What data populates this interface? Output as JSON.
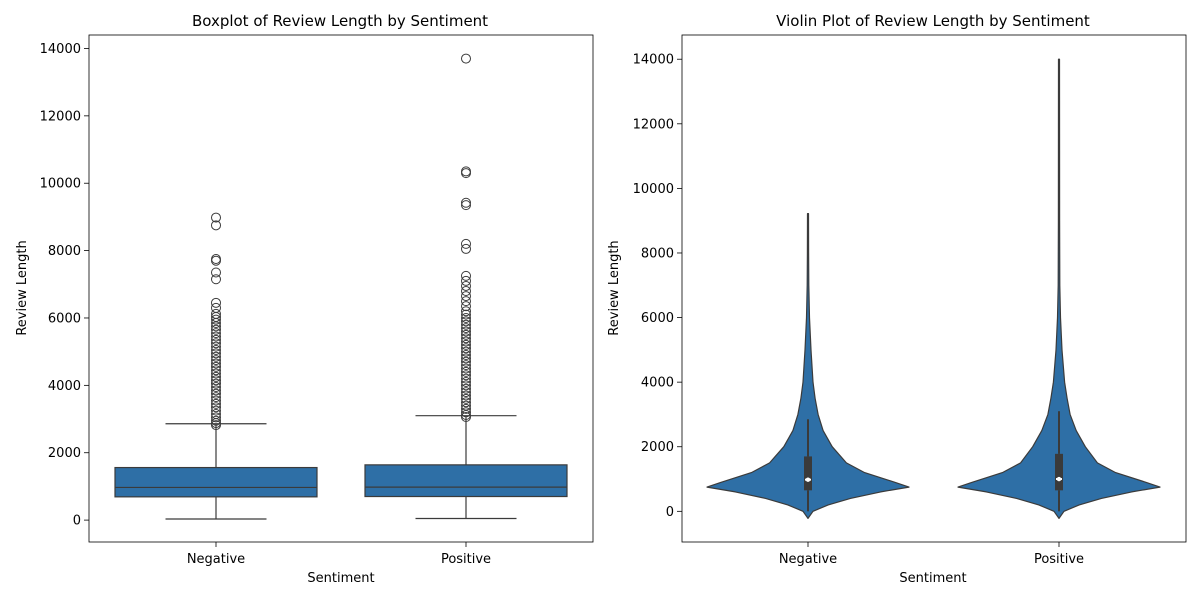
{
  "chart_data": [
    {
      "type": "boxplot",
      "title": "Boxplot of Review Length by Sentiment",
      "xlabel": "Sentiment",
      "ylabel": "Review Length",
      "categories": [
        "Negative",
        "Positive"
      ],
      "ylim": [
        -650,
        14400
      ],
      "yticks": [
        0,
        2000,
        4000,
        6000,
        8000,
        10000,
        12000,
        14000
      ],
      "color": "#2e6fa6",
      "line_color": "#3b3b3b",
      "grid": false,
      "series": [
        {
          "whisker_low": 32,
          "q1": 690,
          "median": 970,
          "q3": 1560,
          "whisker_high": 2860,
          "outliers": [
            2820,
            2880,
            2950,
            3050,
            3150,
            3250,
            3350,
            3450,
            3550,
            3650,
            3750,
            3850,
            3950,
            4050,
            4150,
            4250,
            4350,
            4450,
            4550,
            4650,
            4750,
            4850,
            4950,
            5050,
            5150,
            5250,
            5350,
            5450,
            5550,
            5650,
            5750,
            5850,
            5950,
            6030,
            6120,
            6300,
            6450,
            7150,
            7350,
            7700,
            7750,
            8750,
            8980
          ]
        },
        {
          "whisker_low": 48,
          "q1": 700,
          "median": 980,
          "q3": 1640,
          "whisker_high": 3100,
          "outliers": [
            3060,
            3120,
            3200,
            3300,
            3400,
            3500,
            3600,
            3700,
            3800,
            3900,
            4000,
            4100,
            4200,
            4300,
            4400,
            4500,
            4600,
            4700,
            4800,
            4900,
            5000,
            5100,
            5200,
            5300,
            5400,
            5500,
            5600,
            5700,
            5800,
            5900,
            6000,
            6100,
            6200,
            6350,
            6500,
            6650,
            6800,
            6950,
            7100,
            7250,
            8050,
            8200,
            9350,
            9420,
            10300,
            10350,
            13700
          ]
        }
      ]
    },
    {
      "type": "violin",
      "title": "Violin Plot of Review Length by Sentiment",
      "xlabel": "Sentiment",
      "ylabel": "Review Length",
      "categories": [
        "Negative",
        "Positive"
      ],
      "ylim": [
        -950,
        14750
      ],
      "yticks": [
        0,
        2000,
        4000,
        6000,
        8000,
        10000,
        12000,
        14000
      ],
      "color": "#2e6fa6",
      "line_color": "#3b3b3b",
      "grid": false,
      "series": [
        {
          "min": -220,
          "max": 9220,
          "q1": 650,
          "median": 980,
          "q3": 1700,
          "whisker_high": 2850,
          "density_profile": [
            [
              -220,
              0.0
            ],
            [
              0,
              0.05
            ],
            [
              200,
              0.2
            ],
            [
              400,
              0.42
            ],
            [
              600,
              0.72
            ],
            [
              750,
              1.0
            ],
            [
              900,
              0.86
            ],
            [
              1200,
              0.56
            ],
            [
              1500,
              0.38
            ],
            [
              2000,
              0.24
            ],
            [
              2500,
              0.15
            ],
            [
              3000,
              0.1
            ],
            [
              3500,
              0.07
            ],
            [
              4000,
              0.05
            ],
            [
              5000,
              0.03
            ],
            [
              6000,
              0.015
            ],
            [
              7000,
              0.008
            ],
            [
              8000,
              0.006
            ],
            [
              9220,
              0.005
            ]
          ]
        },
        {
          "min": -220,
          "max": 14000,
          "q1": 650,
          "median": 1000,
          "q3": 1780,
          "whisker_high": 3100,
          "density_profile": [
            [
              -220,
              0.0
            ],
            [
              0,
              0.05
            ],
            [
              200,
              0.2
            ],
            [
              400,
              0.42
            ],
            [
              600,
              0.72
            ],
            [
              750,
              1.0
            ],
            [
              900,
              0.86
            ],
            [
              1200,
              0.56
            ],
            [
              1500,
              0.38
            ],
            [
              2000,
              0.26
            ],
            [
              2500,
              0.17
            ],
            [
              3000,
              0.11
            ],
            [
              3500,
              0.08
            ],
            [
              4000,
              0.055
            ],
            [
              5000,
              0.03
            ],
            [
              6000,
              0.015
            ],
            [
              7000,
              0.008
            ],
            [
              9000,
              0.006
            ],
            [
              14000,
              0.005
            ]
          ]
        }
      ]
    }
  ]
}
